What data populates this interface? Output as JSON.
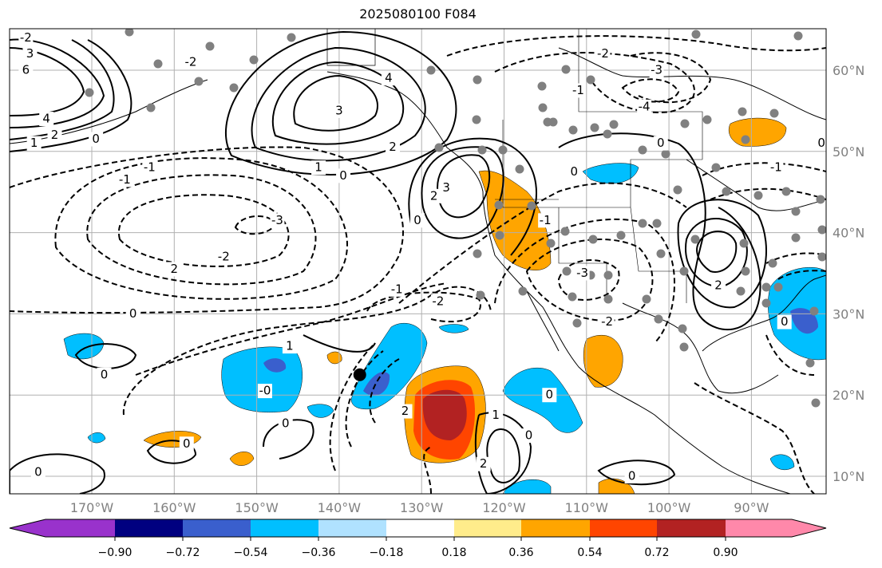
{
  "title": "2025080100 F084",
  "map": {
    "lon_labels": [
      "170°W",
      "160°W",
      "150°W",
      "140°W",
      "130°W",
      "120°W",
      "110°W",
      "100°W",
      "90°W"
    ],
    "lon_values": [
      -170,
      -160,
      -150,
      -140,
      -130,
      -120,
      -110,
      -100,
      -90
    ],
    "lat_labels": [
      "60°N",
      "50°N",
      "40°N",
      "30°N",
      "20°N",
      "10°N"
    ],
    "lat_values": [
      60,
      50,
      40,
      30,
      20,
      10
    ],
    "extent": {
      "lon": [
        -180,
        -81
      ],
      "lat": [
        8.2,
        65.5
      ]
    },
    "marker": {
      "lon": -137.5,
      "lat": 22.5
    },
    "contour_labels": [
      {
        "text": "-2",
        "lon": -178,
        "lat": 64
      },
      {
        "text": "3",
        "lon": -177.5,
        "lat": 62
      },
      {
        "text": "6",
        "lon": -178,
        "lat": 60
      },
      {
        "text": "4",
        "lon": -175.5,
        "lat": 54
      },
      {
        "text": "2",
        "lon": -174.5,
        "lat": 52
      },
      {
        "text": "1",
        "lon": -177,
        "lat": 51
      },
      {
        "text": "0",
        "lon": -169.5,
        "lat": 51.5
      },
      {
        "text": "-1",
        "lon": -163,
        "lat": 48
      },
      {
        "text": "-2",
        "lon": -158,
        "lat": 61
      },
      {
        "text": "3",
        "lon": -140,
        "lat": 55
      },
      {
        "text": "4",
        "lon": -134,
        "lat": 59
      },
      {
        "text": "2",
        "lon": -133.5,
        "lat": 50.5
      },
      {
        "text": "1",
        "lon": -142.5,
        "lat": 48
      },
      {
        "text": "0",
        "lon": -139.5,
        "lat": 47
      },
      {
        "text": "-1",
        "lon": -166,
        "lat": 46.5
      },
      {
        "text": "-3",
        "lon": -147.5,
        "lat": 41.5
      },
      {
        "text": "-2",
        "lon": -154,
        "lat": 37
      },
      {
        "text": "2",
        "lon": -160,
        "lat": 35.5
      },
      {
        "text": "0",
        "lon": -165,
        "lat": 30
      },
      {
        "text": "-1",
        "lon": -133,
        "lat": 33
      },
      {
        "text": "-2",
        "lon": -128,
        "lat": 31.5
      },
      {
        "text": "1",
        "lon": -146,
        "lat": 26
      },
      {
        "text": "0",
        "lon": -168.5,
        "lat": 22.5
      },
      {
        "text": "-0",
        "lon": -149,
        "lat": 20.5
      },
      {
        "text": "2",
        "lon": -132,
        "lat": 18
      },
      {
        "text": "1",
        "lon": -121,
        "lat": 17.5
      },
      {
        "text": "2",
        "lon": -122.5,
        "lat": 11.5
      },
      {
        "text": "0",
        "lon": -117,
        "lat": 15
      },
      {
        "text": "0",
        "lon": -114.5,
        "lat": 20
      },
      {
        "text": "0",
        "lon": -146.5,
        "lat": 16.5
      },
      {
        "text": "0",
        "lon": -158.5,
        "lat": 14
      },
      {
        "text": "0",
        "lon": -176.5,
        "lat": 10.5
      },
      {
        "text": "0",
        "lon": -104.5,
        "lat": 10
      },
      {
        "text": "0",
        "lon": -130.5,
        "lat": 41.5
      },
      {
        "text": "2",
        "lon": -128.5,
        "lat": 44.5
      },
      {
        "text": "3",
        "lon": -127,
        "lat": 45.5
      },
      {
        "text": "-1",
        "lon": -115,
        "lat": 41.5
      },
      {
        "text": "-3",
        "lon": -110.5,
        "lat": 35
      },
      {
        "text": "-2",
        "lon": -107.5,
        "lat": 29
      },
      {
        "text": "0",
        "lon": -101,
        "lat": 51
      },
      {
        "text": "-1",
        "lon": -111,
        "lat": 57.5
      },
      {
        "text": "-2",
        "lon": -108,
        "lat": 62
      },
      {
        "text": "-3",
        "lon": -101.5,
        "lat": 60
      },
      {
        "text": "-4",
        "lon": -103,
        "lat": 55.5
      },
      {
        "text": "0",
        "lon": -111.5,
        "lat": 47.5
      },
      {
        "text": "-1",
        "lon": -87,
        "lat": 48
      },
      {
        "text": "2",
        "lon": -94,
        "lat": 33.5
      },
      {
        "text": "0",
        "lon": -86,
        "lat": 29
      },
      {
        "text": "0",
        "lon": -81.5,
        "lat": 51
      }
    ]
  },
  "colorbar": {
    "ticks": [
      "−0.90",
      "−0.72",
      "−0.54",
      "−0.36",
      "−0.18",
      "0.18",
      "0.36",
      "0.54",
      "0.72",
      "0.90"
    ],
    "colors": [
      "#9932CC",
      "#000080",
      "#3A5FCD",
      "#00BFFF",
      "#B0E2FF",
      "#FFFFFF",
      "#FFEC8B",
      "#FFA500",
      "#FF4500",
      "#B22222",
      "#FF88AA"
    ]
  }
}
